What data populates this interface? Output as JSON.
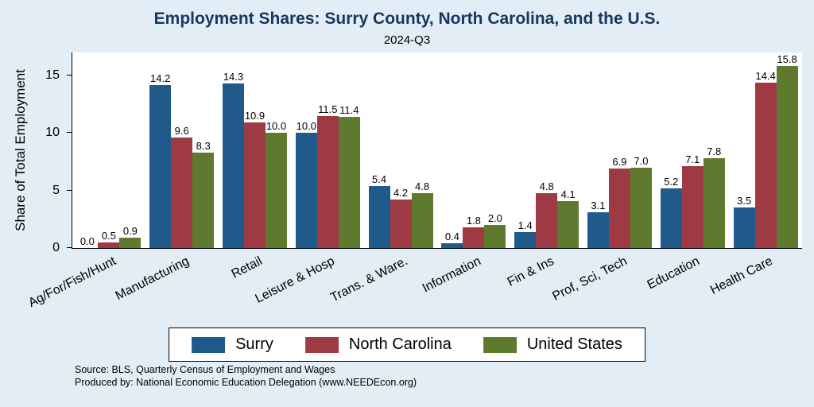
{
  "title": "Employment Shares: Surry County, North Carolina, and the U.S.",
  "subtitle": "2024-Q3",
  "source_line1": "Source: BLS, Quarterly Census of Employment and Wages",
  "source_line2": "Produced by: National Economic Education Delegation (www.NEEDEcon.org)",
  "colors": {
    "background": "#e2edf5",
    "plot_background": "#ffffff",
    "title_text": "#17375e",
    "surry": "#1f5a8a",
    "north_carolina": "#9e3a43",
    "united_states": "#5e7a2f"
  },
  "chart_data": {
    "type": "bar",
    "title": "Employment Shares: Surry County, North Carolina, and the U.S.",
    "subtitle": "2024-Q3",
    "xlabel": "",
    "ylabel": "Share of Total Employment",
    "ylim": [
      0,
      17
    ],
    "yticks": [
      0,
      5,
      10,
      15
    ],
    "grid": false,
    "legend_position": "bottom",
    "categories": [
      "Ag/For/Fish/Hunt",
      "Manufacturing",
      "Retail",
      "Leisure & Hosp",
      "Trans. & Ware.",
      "Information",
      "Fin & Ins",
      "Prof, Sci, Tech",
      "Education",
      "Health Care"
    ],
    "series": [
      {
        "name": "Surry",
        "color": "#1f5a8a",
        "values": [
          0.0,
          14.2,
          14.3,
          10.0,
          5.4,
          0.4,
          1.4,
          3.1,
          5.2,
          3.5
        ]
      },
      {
        "name": "North Carolina",
        "color": "#9e3a43",
        "values": [
          0.5,
          9.6,
          10.9,
          11.5,
          4.2,
          1.8,
          4.8,
          6.9,
          7.1,
          14.4
        ]
      },
      {
        "name": "United States",
        "color": "#5e7a2f",
        "values": [
          0.9,
          8.3,
          10.0,
          11.4,
          4.8,
          2.0,
          4.1,
          7.0,
          7.8,
          15.8
        ]
      }
    ]
  }
}
